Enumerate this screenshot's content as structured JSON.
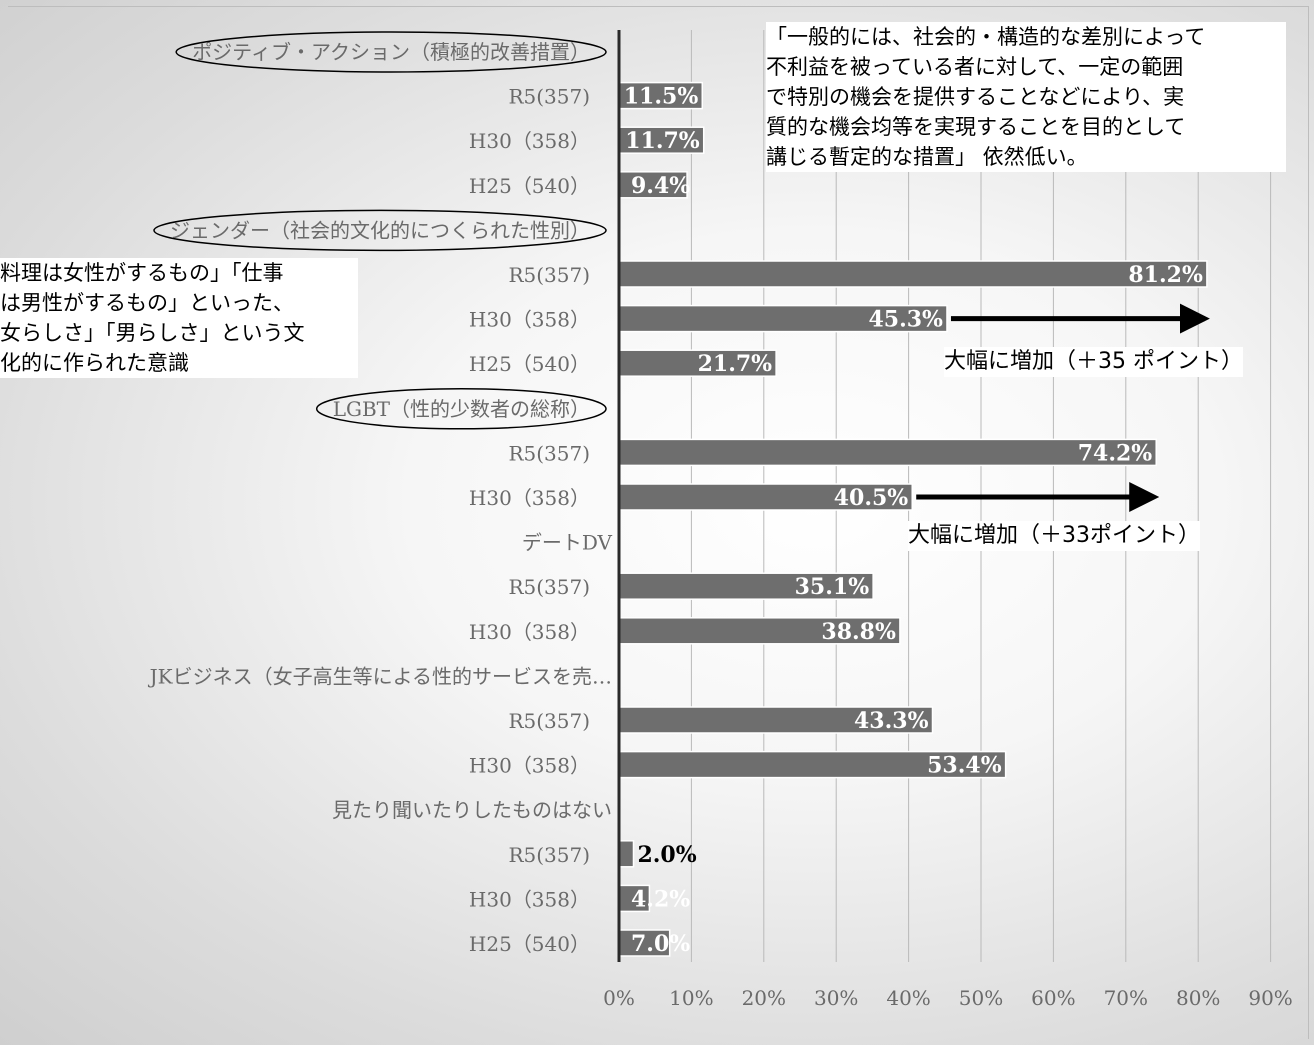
{
  "chart_data": {
    "type": "bar",
    "orientation": "horizontal",
    "xlim": [
      0,
      90
    ],
    "x_ticks": [
      "0%",
      "10%",
      "20%",
      "30%",
      "40%",
      "50%",
      "60%",
      "70%",
      "80%",
      "90%"
    ],
    "grid": true,
    "rows": [
      {
        "label": "ポジティブ・アクション（積極的改善措置）",
        "header": true,
        "circled": true
      },
      {
        "label": "R5(357)",
        "value": 11.5,
        "display": "11.5%"
      },
      {
        "label": "H30（358）",
        "value": 11.7,
        "display": "11.7%"
      },
      {
        "label": "H25（540）",
        "value": 9.4,
        "display": "9.4%"
      },
      {
        "label": "ジェンダー（社会的文化的につくられた性別）",
        "header": true,
        "circled": true
      },
      {
        "label": "R5(357)",
        "value": 81.2,
        "display": "81.2%"
      },
      {
        "label": "H30（358）",
        "value": 45.3,
        "display": "45.3%"
      },
      {
        "label": "H25（540）",
        "value": 21.7,
        "display": "21.7%"
      },
      {
        "label": "LGBT（性的少数者の総称）",
        "header": true,
        "circled": true
      },
      {
        "label": "R5(357)",
        "value": 74.2,
        "display": "74.2%"
      },
      {
        "label": "H30（358）",
        "value": 40.5,
        "display": "40.5%"
      },
      {
        "label": "デートDV",
        "header": true
      },
      {
        "label": "R5(357)",
        "value": 35.1,
        "display": "35.1%"
      },
      {
        "label": "H30（358）",
        "value": 38.8,
        "display": "38.8%"
      },
      {
        "label": "JKビジネス（女子高生等による性的サービスを売…",
        "header": true
      },
      {
        "label": "R5(357)",
        "value": 43.3,
        "display": "43.3%"
      },
      {
        "label": "H30（358）",
        "value": 53.4,
        "display": "53.4%"
      },
      {
        "label": "見たり聞いたりしたものはない",
        "header": true
      },
      {
        "label": "R5(357)",
        "value": 2.0,
        "display": "2.0%",
        "label_outside": true
      },
      {
        "label": "H30（358）",
        "value": 4.2,
        "display": "4.2%"
      },
      {
        "label": "H25（540）",
        "value": 7.0,
        "display": "7.0%"
      }
    ],
    "bar_color": "#6e6e6e",
    "label_color": "#ffffff",
    "annotations": [
      {
        "text": "「一般的には、社会的・構造的な差別によって\n不利益を被っている者に対して、一定の範囲\nで特別の機会を提供することなどにより、実\n質的な機会均等を実現することを目的として\n講じる暫定的な措置」 依然低い。"
      },
      {
        "text": "料理は女性がするもの」「仕事\nは男性がするもの」といった、\n女らしさ」「男らしさ」という文\n化的に作られた意識"
      },
      {
        "text": "大幅に増加（＋35 ポイント）",
        "arrow_from": 45.3,
        "arrow_to": 81.2
      },
      {
        "text": "大幅に増加（＋33ポイント）",
        "arrow_from": 40.5,
        "arrow_to": 74.2
      }
    ]
  }
}
